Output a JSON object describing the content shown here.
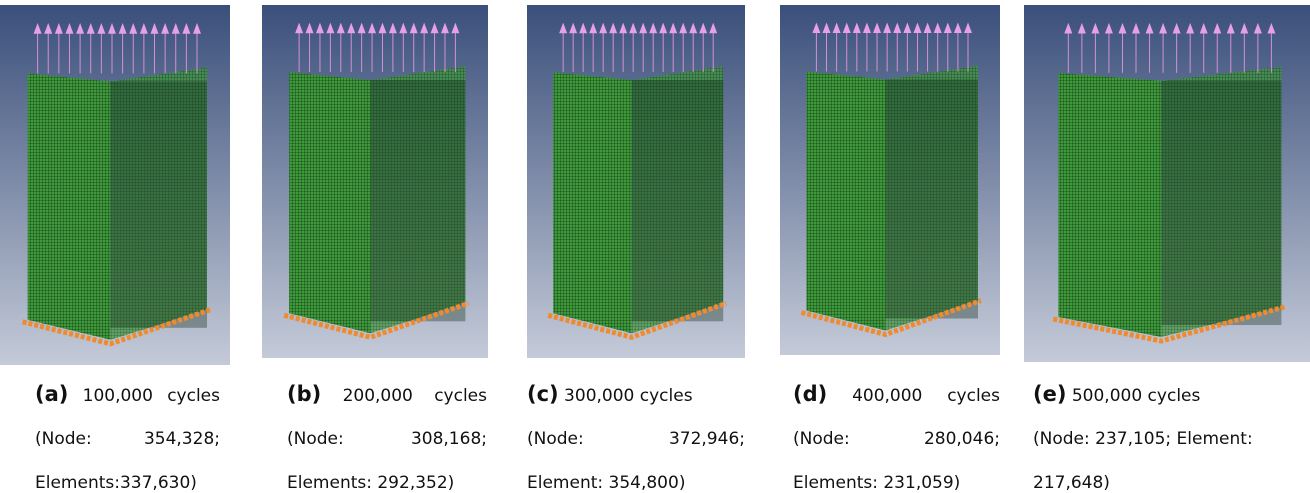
{
  "panels": [
    {
      "label": "(a)",
      "cycles": "100,000 cycles",
      "node": "(Node: 354,328;",
      "elements": "Elements:337,630)"
    },
    {
      "label": "(b)",
      "cycles": "200,000 cycles",
      "node": "(Node: 308,168;",
      "elements": "Elements: 292,352)"
    },
    {
      "label": "(c)",
      "cycles": "300,000 cycles",
      "node": "(Node: 372,946;",
      "elements": "Element: 354,800)"
    },
    {
      "label": "(d)",
      "cycles": "400,000 cycles",
      "node": "(Node: 280,046;",
      "elements": "Elements: 231,059)"
    },
    {
      "label": "(e)",
      "cycles": "500,000 cycles",
      "node": "(Node: 237,105; Element:",
      "elements": "217,648)"
    }
  ]
}
